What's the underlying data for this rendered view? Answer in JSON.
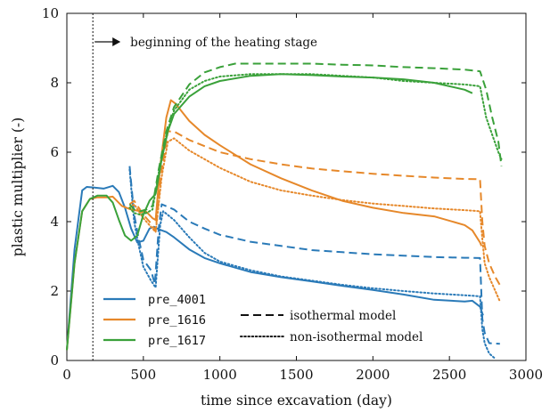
{
  "chart_data": {
    "type": "line",
    "xlabel": "time since excavation (day)",
    "ylabel": "plastic multiplier (-)",
    "xlim": [
      0,
      3000
    ],
    "ylim": [
      0,
      10
    ],
    "xticks": [
      0,
      500,
      1000,
      1500,
      2000,
      2500,
      3000
    ],
    "yticks": [
      0,
      2,
      4,
      6,
      8,
      10
    ],
    "grid": false,
    "annotation": {
      "text": "beginning of the heating stage",
      "x": 170,
      "arrow": "right"
    },
    "legend_series_position": "lower-left",
    "legend_models_position": "lower-center",
    "colors": {
      "pre_4001": "#2a7ab8",
      "pre_1616": "#e6882a",
      "pre_1617": "#3aa13a"
    },
    "legend_series": [
      "pre_4001",
      "pre_1616",
      "pre_1617"
    ],
    "legend_models": [
      {
        "label": "isothermal model",
        "dash": "dashed"
      },
      {
        "label": "non-isothermal model",
        "dash": "dotted"
      }
    ],
    "series": [
      {
        "name": "pre_4001",
        "model": "measured",
        "dash": "solid",
        "points": [
          [
            0,
            0.3
          ],
          [
            50,
            3.2
          ],
          [
            100,
            4.9
          ],
          [
            130,
            5.0
          ],
          [
            180,
            4.98
          ],
          [
            240,
            4.95
          ],
          [
            300,
            5.03
          ],
          [
            340,
            4.85
          ],
          [
            380,
            4.4
          ],
          [
            420,
            3.8
          ],
          [
            460,
            3.4
          ],
          [
            500,
            3.45
          ],
          [
            540,
            3.8
          ],
          [
            570,
            3.85
          ],
          [
            600,
            3.78
          ],
          [
            650,
            3.7
          ],
          [
            700,
            3.55
          ],
          [
            800,
            3.2
          ],
          [
            900,
            2.95
          ],
          [
            1000,
            2.8
          ],
          [
            1200,
            2.55
          ],
          [
            1400,
            2.4
          ],
          [
            1600,
            2.28
          ],
          [
            1800,
            2.15
          ],
          [
            2000,
            2.03
          ],
          [
            2200,
            1.9
          ],
          [
            2400,
            1.75
          ],
          [
            2600,
            1.7
          ],
          [
            2650,
            1.72
          ],
          [
            2700,
            1.55
          ],
          [
            2720,
            1.3
          ]
        ]
      },
      {
        "name": "pre_4001",
        "model": "isothermal",
        "dash": "dashed",
        "points": [
          [
            410,
            5.6
          ],
          [
            440,
            4.2
          ],
          [
            470,
            3.5
          ],
          [
            500,
            2.9
          ],
          [
            550,
            2.6
          ],
          [
            575,
            2.2
          ],
          [
            600,
            3.8
          ],
          [
            620,
            4.5
          ],
          [
            700,
            4.35
          ],
          [
            800,
            4.0
          ],
          [
            900,
            3.8
          ],
          [
            1000,
            3.62
          ],
          [
            1200,
            3.42
          ],
          [
            1400,
            3.3
          ],
          [
            1600,
            3.18
          ],
          [
            1800,
            3.12
          ],
          [
            2000,
            3.06
          ],
          [
            2200,
            3.02
          ],
          [
            2400,
            2.98
          ],
          [
            2600,
            2.96
          ],
          [
            2700,
            2.95
          ],
          [
            2715,
            1.2
          ],
          [
            2730,
            0.8
          ],
          [
            2760,
            0.5
          ],
          [
            2830,
            0.48
          ]
        ]
      },
      {
        "name": "pre_4001",
        "model": "non-isothermal",
        "dash": "dotted",
        "points": [
          [
            410,
            5.5
          ],
          [
            440,
            4.0
          ],
          [
            470,
            3.3
          ],
          [
            500,
            2.7
          ],
          [
            550,
            2.3
          ],
          [
            580,
            2.1
          ],
          [
            610,
            3.9
          ],
          [
            630,
            4.3
          ],
          [
            700,
            4.05
          ],
          [
            800,
            3.55
          ],
          [
            900,
            3.1
          ],
          [
            1000,
            2.85
          ],
          [
            1200,
            2.6
          ],
          [
            1400,
            2.42
          ],
          [
            1600,
            2.3
          ],
          [
            1800,
            2.18
          ],
          [
            2000,
            2.08
          ],
          [
            2200,
            2.0
          ],
          [
            2400,
            1.93
          ],
          [
            2600,
            1.88
          ],
          [
            2700,
            1.85
          ],
          [
            2715,
            0.9
          ],
          [
            2730,
            0.5
          ],
          [
            2760,
            0.2
          ],
          [
            2800,
            0.05
          ]
        ]
      },
      {
        "name": "pre_1616",
        "model": "measured",
        "dash": "solid",
        "points": [
          [
            0,
            0.3
          ],
          [
            50,
            2.8
          ],
          [
            100,
            4.3
          ],
          [
            150,
            4.65
          ],
          [
            200,
            4.7
          ],
          [
            260,
            4.7
          ],
          [
            300,
            4.72
          ],
          [
            360,
            4.45
          ],
          [
            420,
            4.35
          ],
          [
            480,
            4.3
          ],
          [
            520,
            4.28
          ],
          [
            560,
            4.1
          ],
          [
            580,
            4.05
          ],
          [
            610,
            5.6
          ],
          [
            650,
            7.0
          ],
          [
            680,
            7.5
          ],
          [
            710,
            7.4
          ],
          [
            800,
            6.9
          ],
          [
            900,
            6.5
          ],
          [
            1000,
            6.2
          ],
          [
            1200,
            5.65
          ],
          [
            1400,
            5.25
          ],
          [
            1600,
            4.9
          ],
          [
            1800,
            4.6
          ],
          [
            2000,
            4.4
          ],
          [
            2200,
            4.25
          ],
          [
            2400,
            4.15
          ],
          [
            2600,
            3.9
          ],
          [
            2650,
            3.75
          ],
          [
            2700,
            3.4
          ],
          [
            2710,
            3.3
          ]
        ]
      },
      {
        "name": "pre_1616",
        "model": "isothermal",
        "dash": "dashed",
        "points": [
          [
            410,
            4.5
          ],
          [
            440,
            4.6
          ],
          [
            470,
            4.4
          ],
          [
            500,
            4.2
          ],
          [
            540,
            4.0
          ],
          [
            580,
            3.75
          ],
          [
            620,
            5.5
          ],
          [
            660,
            6.6
          ],
          [
            700,
            6.6
          ],
          [
            800,
            6.35
          ],
          [
            1000,
            6.0
          ],
          [
            1200,
            5.8
          ],
          [
            1400,
            5.65
          ],
          [
            1600,
            5.53
          ],
          [
            1800,
            5.45
          ],
          [
            2000,
            5.38
          ],
          [
            2200,
            5.32
          ],
          [
            2400,
            5.27
          ],
          [
            2600,
            5.23
          ],
          [
            2700,
            5.22
          ],
          [
            2715,
            4.0
          ],
          [
            2730,
            3.3
          ],
          [
            2760,
            2.8
          ],
          [
            2800,
            2.4
          ],
          [
            2840,
            2.1
          ]
        ]
      },
      {
        "name": "pre_1616",
        "model": "non-isothermal",
        "dash": "dotted",
        "points": [
          [
            410,
            4.4
          ],
          [
            440,
            4.5
          ],
          [
            470,
            4.3
          ],
          [
            500,
            4.1
          ],
          [
            540,
            3.9
          ],
          [
            580,
            3.7
          ],
          [
            620,
            5.3
          ],
          [
            660,
            6.3
          ],
          [
            700,
            6.4
          ],
          [
            800,
            6.05
          ],
          [
            1000,
            5.55
          ],
          [
            1200,
            5.15
          ],
          [
            1400,
            4.9
          ],
          [
            1600,
            4.75
          ],
          [
            1800,
            4.62
          ],
          [
            2000,
            4.52
          ],
          [
            2200,
            4.45
          ],
          [
            2400,
            4.38
          ],
          [
            2600,
            4.33
          ],
          [
            2700,
            4.3
          ],
          [
            2715,
            3.5
          ],
          [
            2730,
            2.8
          ],
          [
            2760,
            2.4
          ],
          [
            2800,
            2.0
          ],
          [
            2830,
            1.7
          ]
        ]
      },
      {
        "name": "pre_1617",
        "model": "measured",
        "dash": "solid",
        "points": [
          [
            0,
            0.3
          ],
          [
            50,
            2.8
          ],
          [
            100,
            4.3
          ],
          [
            150,
            4.65
          ],
          [
            200,
            4.75
          ],
          [
            260,
            4.75
          ],
          [
            300,
            4.55
          ],
          [
            340,
            4.05
          ],
          [
            380,
            3.6
          ],
          [
            420,
            3.45
          ],
          [
            460,
            3.6
          ],
          [
            500,
            4.2
          ],
          [
            540,
            4.6
          ],
          [
            580,
            4.8
          ],
          [
            620,
            5.8
          ],
          [
            660,
            6.6
          ],
          [
            700,
            7.1
          ],
          [
            800,
            7.6
          ],
          [
            900,
            7.9
          ],
          [
            1000,
            8.05
          ],
          [
            1200,
            8.2
          ],
          [
            1400,
            8.25
          ],
          [
            1600,
            8.22
          ],
          [
            1800,
            8.18
          ],
          [
            2000,
            8.15
          ],
          [
            2200,
            8.1
          ],
          [
            2400,
            8.0
          ],
          [
            2600,
            7.8
          ],
          [
            2650,
            7.7
          ]
        ]
      },
      {
        "name": "pre_1617",
        "model": "isothermal",
        "dash": "dashed",
        "points": [
          [
            410,
            4.5
          ],
          [
            440,
            4.35
          ],
          [
            480,
            4.3
          ],
          [
            520,
            4.35
          ],
          [
            560,
            4.45
          ],
          [
            600,
            5.5
          ],
          [
            650,
            6.6
          ],
          [
            700,
            7.3
          ],
          [
            800,
            7.95
          ],
          [
            900,
            8.3
          ],
          [
            1000,
            8.45
          ],
          [
            1100,
            8.55
          ],
          [
            1200,
            8.55
          ],
          [
            1400,
            8.55
          ],
          [
            1600,
            8.55
          ],
          [
            1800,
            8.52
          ],
          [
            2000,
            8.5
          ],
          [
            2200,
            8.45
          ],
          [
            2400,
            8.42
          ],
          [
            2600,
            8.38
          ],
          [
            2700,
            8.33
          ],
          [
            2740,
            7.8
          ],
          [
            2780,
            7.0
          ],
          [
            2820,
            6.3
          ],
          [
            2840,
            5.6
          ]
        ]
      },
      {
        "name": "pre_1617",
        "model": "non-isothermal",
        "dash": "dotted",
        "points": [
          [
            410,
            4.4
          ],
          [
            440,
            4.25
          ],
          [
            480,
            4.2
          ],
          [
            520,
            4.25
          ],
          [
            560,
            4.35
          ],
          [
            600,
            5.4
          ],
          [
            650,
            6.5
          ],
          [
            700,
            7.2
          ],
          [
            800,
            7.8
          ],
          [
            900,
            8.05
          ],
          [
            1000,
            8.18
          ],
          [
            1200,
            8.25
          ],
          [
            1400,
            8.25
          ],
          [
            1600,
            8.25
          ],
          [
            1800,
            8.2
          ],
          [
            2000,
            8.15
          ],
          [
            2200,
            8.05
          ],
          [
            2400,
            8.0
          ],
          [
            2600,
            7.95
          ],
          [
            2700,
            7.9
          ],
          [
            2740,
            7.0
          ],
          [
            2780,
            6.5
          ],
          [
            2820,
            6.0
          ],
          [
            2840,
            5.8
          ]
        ]
      }
    ]
  }
}
